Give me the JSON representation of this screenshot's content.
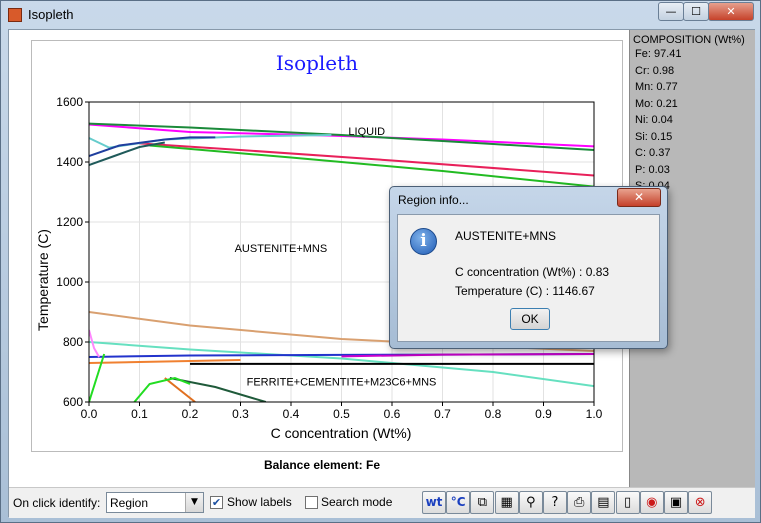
{
  "window": {
    "title": "Isopleth",
    "min_label": "—",
    "max_label": "☐",
    "close_label": "✕"
  },
  "chart_data": {
    "type": "line",
    "title": "Isopleth",
    "xlabel": "C concentration (Wt%)",
    "ylabel": "Temperature (C)",
    "xlim": [
      0.0,
      1.0
    ],
    "ylim": [
      600,
      1600
    ],
    "xticks": [
      "0.0",
      "0.1",
      "0.2",
      "0.3",
      "0.4",
      "0.5",
      "0.6",
      "0.7",
      "0.8",
      "0.9",
      "1.0"
    ],
    "yticks": [
      "600",
      "800",
      "1000",
      "1200",
      "1400",
      "1600"
    ],
    "grid": true,
    "footer": "Balance element: Fe",
    "region_labels": [
      {
        "text": "LIQUID",
        "x": 0.55,
        "y": 1490
      },
      {
        "text": "AUSTENITE+MNS",
        "x": 0.38,
        "y": 1100
      },
      {
        "text": "FERRITE+CEMENTITE+M23C6+MNS",
        "x": 0.5,
        "y": 655
      }
    ],
    "series": [
      {
        "color": "#ff00ff",
        "x": [
          0.0,
          0.2,
          0.48,
          0.7,
          1.0
        ],
        "y": [
          1525,
          1500,
          1488,
          1475,
          1452
        ]
      },
      {
        "color": "#1b8a3a",
        "x": [
          0.0,
          0.2,
          0.5,
          0.8,
          1.0
        ],
        "y": [
          1528,
          1515,
          1490,
          1460,
          1440
        ]
      },
      {
        "color": "#e8205a",
        "x": [
          0.1,
          0.3,
          0.6,
          1.0
        ],
        "y": [
          1462,
          1440,
          1405,
          1355
        ]
      },
      {
        "color": "#22bb22",
        "x": [
          0.12,
          0.4,
          0.7,
          1.0
        ],
        "y": [
          1455,
          1415,
          1370,
          1318
        ]
      },
      {
        "color": "#66cccc",
        "x": [
          0.0,
          0.04,
          0.15,
          0.3,
          0.48
        ],
        "y": [
          1480,
          1448,
          1475,
          1485,
          1490
        ]
      },
      {
        "color": "#1f3e9e",
        "x": [
          0.0,
          0.06,
          0.15,
          0.2,
          0.25
        ],
        "y": [
          1420,
          1455,
          1475,
          1482,
          1482
        ]
      },
      {
        "color": "#1f5a5a",
        "x": [
          0.0,
          0.05,
          0.1,
          0.15
        ],
        "y": [
          1390,
          1420,
          1450,
          1465
        ]
      },
      {
        "color": "#d9a070",
        "x": [
          0.0,
          0.2,
          0.5,
          0.8,
          1.0
        ],
        "y": [
          900,
          855,
          810,
          785,
          770
        ]
      },
      {
        "color": "#66e0c0",
        "x": [
          0.0,
          0.2,
          0.5,
          0.8,
          1.0
        ],
        "y": [
          800,
          775,
          745,
          700,
          653
        ]
      },
      {
        "color": "#2233cc",
        "x": [
          0.0,
          0.2,
          0.5,
          0.7,
          1.0
        ],
        "y": [
          750,
          755,
          757,
          758,
          760
        ]
      },
      {
        "color": "#cc00cc",
        "x": [
          0.5,
          0.7,
          1.0
        ],
        "y": [
          752,
          758,
          760
        ]
      },
      {
        "color": "#000000",
        "x": [
          0.2,
          0.5,
          0.8,
          1.0
        ],
        "y": [
          727,
          727,
          727,
          727
        ]
      },
      {
        "color": "#f08030",
        "x": [
          0.0,
          0.15,
          0.3
        ],
        "y": [
          730,
          735,
          740
        ]
      },
      {
        "color": "#1f5a3a",
        "x": [
          0.16,
          0.25,
          0.35
        ],
        "y": [
          680,
          650,
          600
        ]
      },
      {
        "color": "#e07020",
        "x": [
          0.15,
          0.18,
          0.21
        ],
        "y": [
          680,
          640,
          600
        ]
      },
      {
        "color": "#22dd22",
        "x": [
          0.0,
          0.015,
          0.03
        ],
        "y": [
          600,
          680,
          760
        ]
      },
      {
        "color": "#22dd22",
        "x": [
          0.09,
          0.12,
          0.17,
          0.2
        ],
        "y": [
          600,
          660,
          680,
          660
        ]
      },
      {
        "color": "#ff88ff",
        "x": [
          0.0,
          0.01,
          0.02
        ],
        "y": [
          840,
          780,
          750
        ]
      }
    ]
  },
  "composition": {
    "title": "COMPOSITION (Wt%)",
    "items": [
      "Fe: 97.41",
      "Cr: 0.98",
      "Mn: 0.77",
      "Mo: 0.21",
      "Ni: 0.04",
      "Si: 0.15",
      "C: 0.37",
      "P: 0.03",
      "S: 0.04"
    ]
  },
  "toolbar": {
    "identify_label": "On click identify:",
    "identify_value": "Region",
    "show_labels": "Show labels",
    "show_labels_checked": "✔",
    "search_mode": "Search mode",
    "tools": [
      {
        "name": "wt-button",
        "glyph": "wt"
      },
      {
        "name": "celsius-button",
        "glyph": "°C"
      },
      {
        "name": "chart-axes-button",
        "glyph": "⧉"
      },
      {
        "name": "grid-button",
        "glyph": "▦"
      },
      {
        "name": "zoom-button",
        "glyph": "⚲"
      },
      {
        "name": "help-button",
        "glyph": "?"
      },
      {
        "name": "print-button",
        "glyph": "⎙"
      },
      {
        "name": "clipboard-button",
        "glyph": "▤"
      },
      {
        "name": "document-button",
        "glyph": "▯"
      },
      {
        "name": "camera-button",
        "glyph": "◉"
      },
      {
        "name": "save-button",
        "glyph": "▣"
      },
      {
        "name": "stop-button",
        "glyph": "⊗"
      }
    ]
  },
  "dialog": {
    "title": "Region info...",
    "close_label": "✕",
    "icon": "info-icon",
    "region": "AUSTENITE+MNS",
    "concentration": "C concentration (Wt%) : 0.83",
    "temperature": "Temperature (C) : 1146.67",
    "ok_label": "OK"
  }
}
